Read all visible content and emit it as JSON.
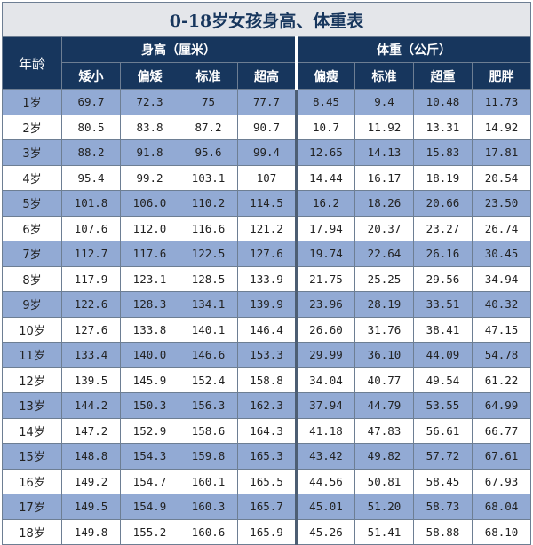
{
  "title": "0-18岁女孩身高、体重表",
  "header": {
    "age_label": "年龄",
    "height_group": "身高（厘米）",
    "weight_group": "体重（公斤）",
    "height_cols": [
      "矮小",
      "偏矮",
      "标准",
      "超高"
    ],
    "weight_cols": [
      "偏瘦",
      "标准",
      "超重",
      "肥胖"
    ]
  },
  "rows": [
    {
      "age": "1岁",
      "h": [
        "69.7",
        "72.3",
        "75",
        "77.7"
      ],
      "w": [
        "8.45",
        "9.4",
        "10.48",
        "11.73"
      ]
    },
    {
      "age": "2岁",
      "h": [
        "80.5",
        "83.8",
        "87.2",
        "90.7"
      ],
      "w": [
        "10.7",
        "11.92",
        "13.31",
        "14.92"
      ]
    },
    {
      "age": "3岁",
      "h": [
        "88.2",
        "91.8",
        "95.6",
        "99.4"
      ],
      "w": [
        "12.65",
        "14.13",
        "15.83",
        "17.81"
      ]
    },
    {
      "age": "4岁",
      "h": [
        "95.4",
        "99.2",
        "103.1",
        "107"
      ],
      "w": [
        "14.44",
        "16.17",
        "18.19",
        "20.54"
      ]
    },
    {
      "age": "5岁",
      "h": [
        "101.8",
        "106.0",
        "110.2",
        "114.5"
      ],
      "w": [
        "16.2",
        "18.26",
        "20.66",
        "23.50"
      ]
    },
    {
      "age": "6岁",
      "h": [
        "107.6",
        "112.0",
        "116.6",
        "121.2"
      ],
      "w": [
        "17.94",
        "20.37",
        "23.27",
        "26.74"
      ]
    },
    {
      "age": "7岁",
      "h": [
        "112.7",
        "117.6",
        "122.5",
        "127.6"
      ],
      "w": [
        "19.74",
        "22.64",
        "26.16",
        "30.45"
      ]
    },
    {
      "age": "8岁",
      "h": [
        "117.9",
        "123.1",
        "128.5",
        "133.9"
      ],
      "w": [
        "21.75",
        "25.25",
        "29.56",
        "34.94"
      ]
    },
    {
      "age": "9岁",
      "h": [
        "122.6",
        "128.3",
        "134.1",
        "139.9"
      ],
      "w": [
        "23.96",
        "28.19",
        "33.51",
        "40.32"
      ]
    },
    {
      "age": "10岁",
      "h": [
        "127.6",
        "133.8",
        "140.1",
        "146.4"
      ],
      "w": [
        "26.60",
        "31.76",
        "38.41",
        "47.15"
      ]
    },
    {
      "age": "11岁",
      "h": [
        "133.4",
        "140.0",
        "146.6",
        "153.3"
      ],
      "w": [
        "29.99",
        "36.10",
        "44.09",
        "54.78"
      ]
    },
    {
      "age": "12岁",
      "h": [
        "139.5",
        "145.9",
        "152.4",
        "158.8"
      ],
      "w": [
        "34.04",
        "40.77",
        "49.54",
        "61.22"
      ]
    },
    {
      "age": "13岁",
      "h": [
        "144.2",
        "150.3",
        "156.3",
        "162.3"
      ],
      "w": [
        "37.94",
        "44.79",
        "53.55",
        "64.99"
      ]
    },
    {
      "age": "14岁",
      "h": [
        "147.2",
        "152.9",
        "158.6",
        "164.3"
      ],
      "w": [
        "41.18",
        "47.83",
        "56.61",
        "66.77"
      ]
    },
    {
      "age": "15岁",
      "h": [
        "148.8",
        "154.3",
        "159.8",
        "165.3"
      ],
      "w": [
        "43.42",
        "49.82",
        "57.72",
        "67.61"
      ]
    },
    {
      "age": "16岁",
      "h": [
        "149.2",
        "154.7",
        "160.1",
        "165.5"
      ],
      "w": [
        "44.56",
        "50.81",
        "58.45",
        "67.93"
      ]
    },
    {
      "age": "17岁",
      "h": [
        "149.5",
        "154.9",
        "160.3",
        "165.7"
      ],
      "w": [
        "45.01",
        "51.20",
        "58.73",
        "68.04"
      ]
    },
    {
      "age": "18岁",
      "h": [
        "149.8",
        "155.2",
        "160.6",
        "165.9"
      ],
      "w": [
        "45.26",
        "51.41",
        "58.88",
        "68.10"
      ]
    }
  ]
}
